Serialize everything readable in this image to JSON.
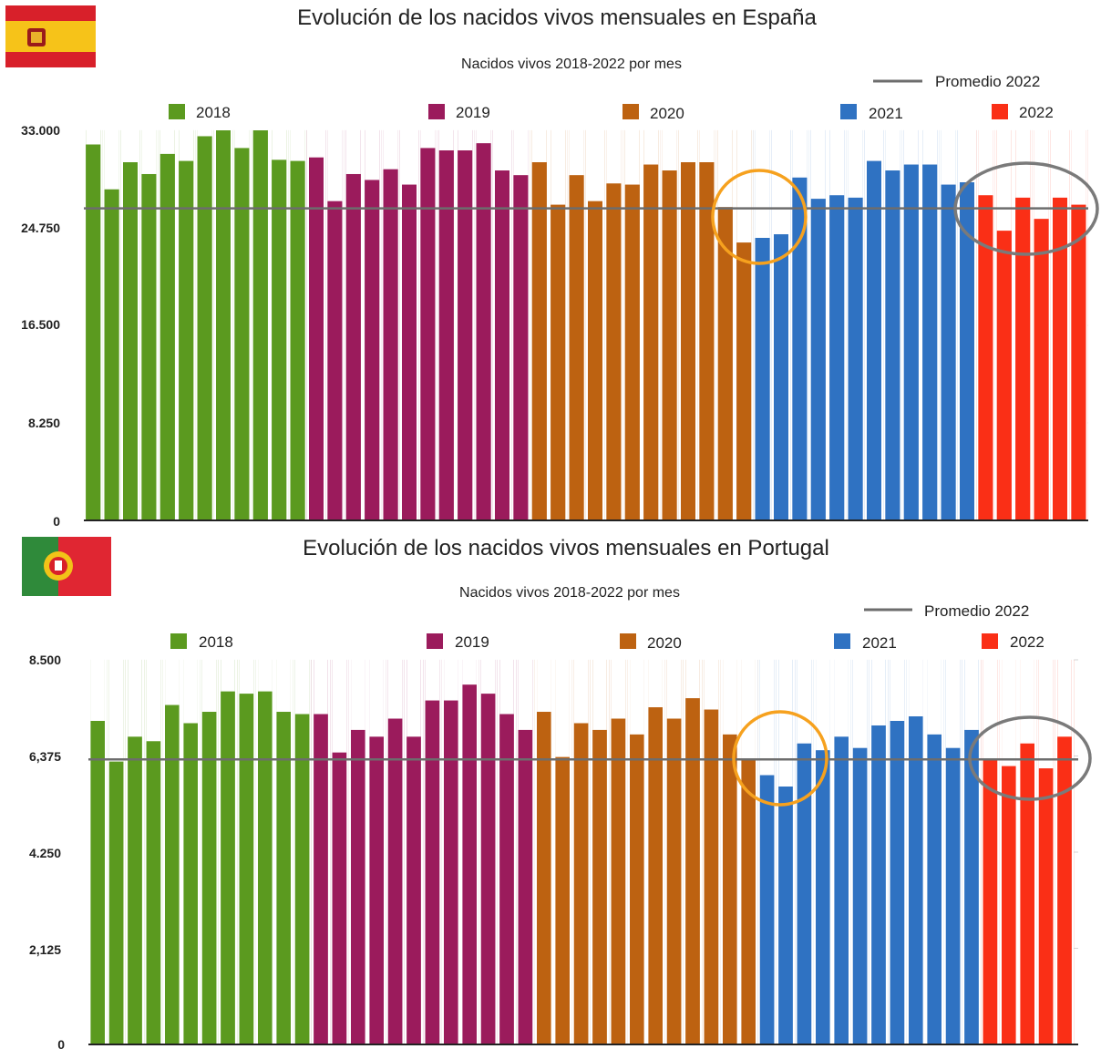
{
  "colors": {
    "2018": "#5b9a1f",
    "2019": "#9b1b5c",
    "2020": "#bd6211",
    "2021": "#2f72c2",
    "2022": "#fa2f16",
    "average_line": "#6d6d6d",
    "highlight_orange": "#f6a11e",
    "highlight_gray": "#7a7a7a"
  },
  "chart_data": [
    {
      "type": "bar",
      "title": "Evolución de los nacidos vivos mensuales en España",
      "subtitle": "Nacidos vivos 2018-2022 por mes",
      "flag_icon": "spain-flag-icon",
      "legend_series": [
        "2018",
        "2019",
        "2020",
        "2021",
        "2022"
      ],
      "legend_line": "Promedio 2022",
      "ytick_labels": [
        "33.000",
        "24.750",
        "16.500",
        "8.250",
        "0"
      ],
      "yticks": [
        33000,
        24750,
        16500,
        8250,
        0
      ],
      "ylim": [
        0,
        33000
      ],
      "average_2022": 26400,
      "series": [
        {
          "name": "2018",
          "values": [
            31800,
            28000,
            30300,
            29300,
            31000,
            30400,
            32500,
            33000,
            31500,
            33000,
            30500,
            30400
          ]
        },
        {
          "name": "2019",
          "values": [
            30700,
            27000,
            29300,
            28800,
            29700,
            28400,
            31500,
            31300,
            31300,
            31900,
            29600,
            29200
          ]
        },
        {
          "name": "2020",
          "values": [
            30300,
            26700,
            29200,
            27000,
            28500,
            28400,
            30100,
            29600,
            30300,
            30300,
            26500,
            23500
          ]
        },
        {
          "name": "2021",
          "values": [
            23900,
            24200,
            29000,
            27200,
            27500,
            27300,
            30400,
            29600,
            30100,
            30100,
            28400,
            28600
          ]
        },
        {
          "name": "2022",
          "values": [
            27500,
            24500,
            27300,
            25500,
            27300,
            26700
          ]
        }
      ],
      "annotations": [
        {
          "shape": "circle",
          "color": "orange",
          "around": "late 2020 - early 2021"
        },
        {
          "shape": "ellipse",
          "color": "gray",
          "around": "2022"
        }
      ]
    },
    {
      "type": "bar",
      "title": "Evolución de los nacidos vivos mensuales en Portugal",
      "subtitle": "Nacidos vivos 2018-2022 por mes",
      "flag_icon": "portugal-flag-icon",
      "legend_series": [
        "2018",
        "2019",
        "2020",
        "2021",
        "2022"
      ],
      "legend_line": "Promedio 2022",
      "ytick_labels": [
        "8.500",
        "6,375",
        "4.250",
        "2,125",
        "0"
      ],
      "yticks": [
        8500,
        6375,
        4250,
        2125,
        0
      ],
      "ylim": [
        0,
        8500
      ],
      "average_2022": 6300,
      "series": [
        {
          "name": "2018",
          "values": [
            7150,
            6250,
            6800,
            6700,
            7500,
            7100,
            7350,
            7800,
            7750,
            7800,
            7350,
            7300
          ]
        },
        {
          "name": "2019",
          "values": [
            7300,
            6450,
            6950,
            6800,
            7200,
            6800,
            7600,
            7600,
            7950,
            7750,
            7300,
            6950
          ]
        },
        {
          "name": "2020",
          "values": [
            7350,
            6350,
            7100,
            6950,
            7200,
            6850,
            7450,
            7200,
            7650,
            7400,
            6850,
            6300
          ]
        },
        {
          "name": "2021",
          "values": [
            5950,
            5700,
            6650,
            6500,
            6800,
            6550,
            7050,
            7150,
            7250,
            6850,
            6550,
            6950
          ]
        },
        {
          "name": "2022",
          "values": [
            6300,
            6150,
            6650,
            6100,
            6800
          ]
        }
      ],
      "annotations": [
        {
          "shape": "circle",
          "color": "orange",
          "around": "late 2020 - early 2021"
        },
        {
          "shape": "ellipse",
          "color": "gray",
          "around": "2022"
        }
      ]
    }
  ]
}
